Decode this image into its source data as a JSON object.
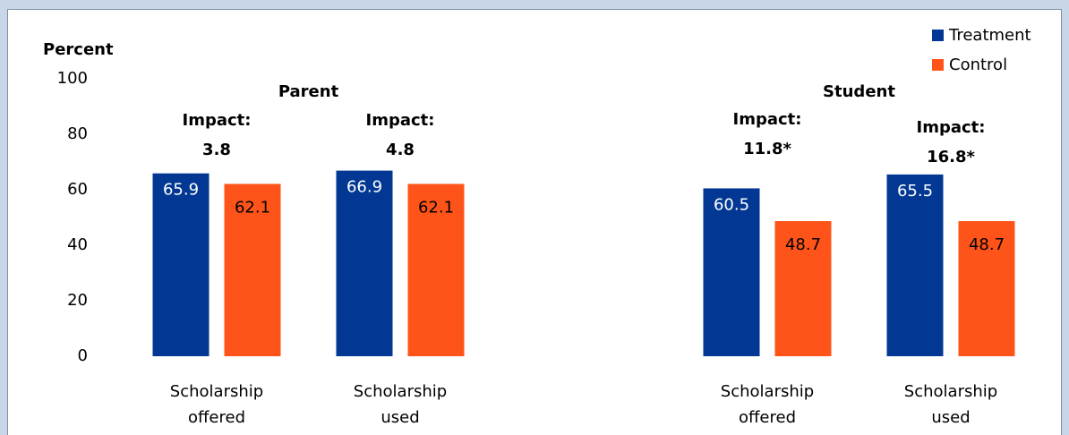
{
  "chart_data": {
    "type": "bar",
    "y_label": "Percent",
    "groups": [
      "Parent",
      "Student"
    ],
    "categories": [
      "Scholarship offered",
      "Scholarship used",
      null,
      "Scholarship offered",
      "Scholarship used"
    ],
    "impact_labels": [
      "Impact: 3.8",
      "Impact: 4.8",
      null,
      "Impact: 11.8*",
      "Impact: 16.8*"
    ],
    "series": [
      {
        "name": "Treatment",
        "color": "#023893",
        "values": [
          65.9,
          66.9,
          null,
          60.5,
          65.5
        ]
      },
      {
        "name": "Control",
        "color": "#ff5419",
        "values": [
          62.1,
          62.1,
          null,
          48.7,
          48.7
        ]
      }
    ],
    "ylim": [
      0,
      100
    ],
    "yticks": [
      0,
      20,
      40,
      60,
      80,
      100
    ],
    "grid": false,
    "legend": "top-right"
  }
}
